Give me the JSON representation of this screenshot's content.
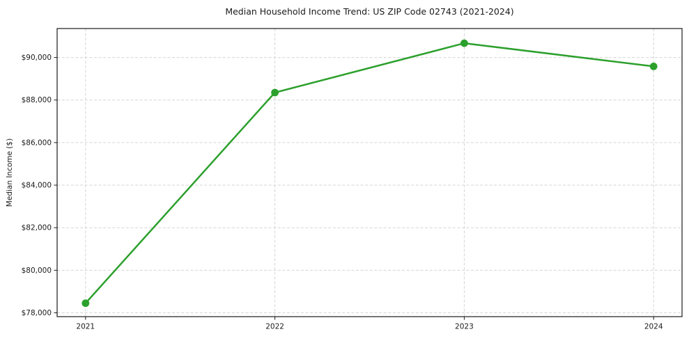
{
  "figure": {
    "background": "#ffffff"
  },
  "chart_data": {
    "type": "line",
    "title": "Median Household Income Trend: US ZIP Code 02743 (2021-2024)",
    "xlabel": "",
    "ylabel": "Median Income ($)",
    "x": [
      2021,
      2022,
      2023,
      2024
    ],
    "series": [
      {
        "name": "Median household income",
        "values": [
          78450,
          88350,
          90670,
          89580
        ]
      }
    ],
    "xtick_labels": [
      "2021",
      "2022",
      "2023",
      "2024"
    ],
    "yticks": [
      78000,
      80000,
      82000,
      84000,
      86000,
      88000,
      90000
    ],
    "ytick_labels": [
      "$78,000",
      "$80,000",
      "$82,000",
      "$84,000",
      "$86,000",
      "$88,000",
      "$90,000"
    ],
    "xlim": [
      2020.85,
      2024.15
    ],
    "ylim": [
      77820,
      91360
    ],
    "grid": "dashed-both-axes",
    "legend_position": "none",
    "line_color": "#2ca02c",
    "marker": "circle",
    "colors": {
      "grid": "#d5d5d5",
      "spine": "#1a1a1a",
      "text": "#1a1a1a",
      "background": "#ffffff"
    }
  }
}
